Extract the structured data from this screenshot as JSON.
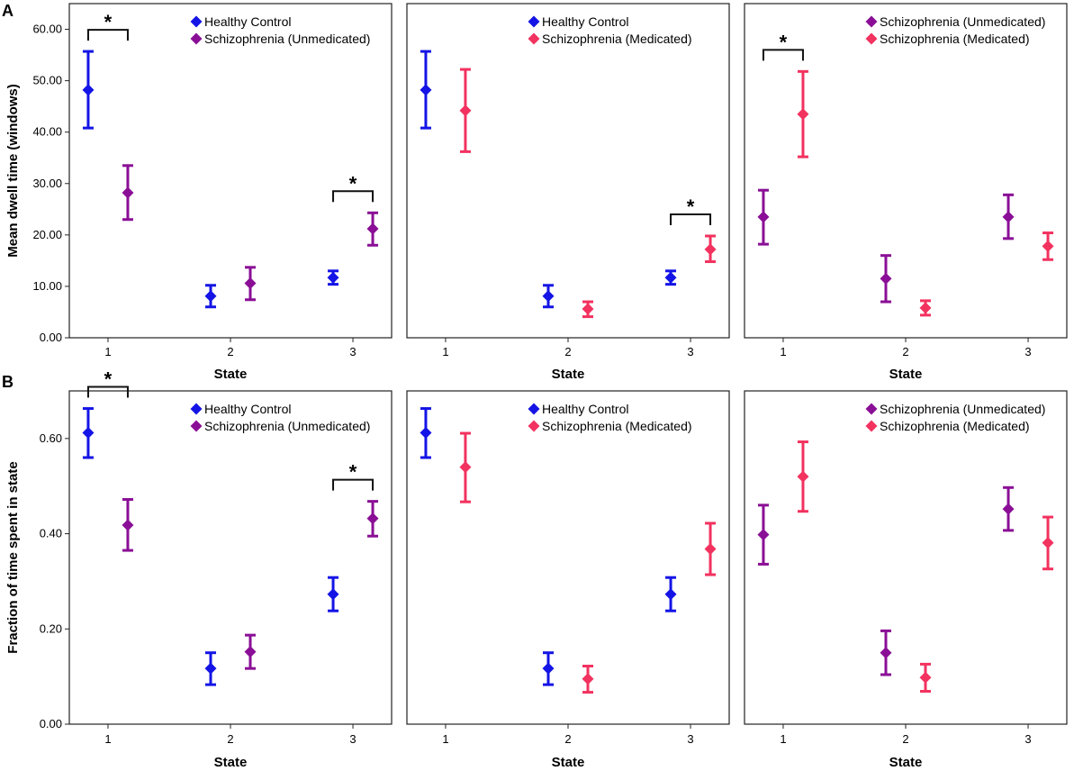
{
  "panel_labels": [
    "A",
    "B"
  ],
  "colors": {
    "Healthy Control": "#1414e6",
    "Schizophrenia (Unmedicated)": "#8a0f96",
    "Schizophrenia (Medicated)": "#f2325f"
  },
  "chart_data": [
    {
      "type": "scatter",
      "row": 0,
      "col": 0,
      "title": "",
      "xlabel": "State",
      "ylabel": "Mean dwell time (windows)",
      "categories": [
        "1",
        "2",
        "3"
      ],
      "ylim": [
        0,
        65
      ],
      "yticks": [
        "0.00",
        "10.00",
        "20.00",
        "30.00",
        "40.00",
        "50.00",
        "60.00"
      ],
      "series": [
        {
          "name": "Healthy Control",
          "mean": [
            48.2,
            8.1,
            11.7
          ],
          "lower": [
            40.8,
            6.0,
            10.4
          ],
          "upper": [
            55.7,
            10.2,
            13.0
          ]
        },
        {
          "name": "Schizophrenia (Unmedicated)",
          "mean": [
            28.2,
            10.6,
            21.2
          ],
          "lower": [
            23.0,
            7.4,
            18.0
          ],
          "upper": [
            33.5,
            13.7,
            24.3
          ]
        }
      ],
      "significance": [
        {
          "state": 0,
          "label": "*"
        },
        {
          "state": 2,
          "label": "*"
        }
      ]
    },
    {
      "type": "scatter",
      "row": 0,
      "col": 1,
      "title": "",
      "xlabel": "State",
      "ylabel": "",
      "categories": [
        "1",
        "2",
        "3"
      ],
      "ylim": [
        0,
        65
      ],
      "series": [
        {
          "name": "Healthy Control",
          "mean": [
            48.2,
            8.1,
            11.7
          ],
          "lower": [
            40.8,
            6.0,
            10.4
          ],
          "upper": [
            55.7,
            10.2,
            13.0
          ]
        },
        {
          "name": "Schizophrenia (Medicated)",
          "mean": [
            44.2,
            5.6,
            17.2
          ],
          "lower": [
            36.2,
            4.1,
            14.8
          ],
          "upper": [
            52.2,
            7.0,
            19.8
          ]
        }
      ],
      "significance": [
        {
          "state": 2,
          "label": "*"
        }
      ]
    },
    {
      "type": "scatter",
      "row": 0,
      "col": 2,
      "title": "",
      "xlabel": "State",
      "ylabel": "",
      "categories": [
        "1",
        "2",
        "3"
      ],
      "ylim": [
        0,
        65
      ],
      "series": [
        {
          "name": "Schizophrenia (Unmedicated)",
          "mean": [
            23.5,
            11.5,
            23.5
          ],
          "lower": [
            18.2,
            7.0,
            19.3
          ],
          "upper": [
            28.7,
            16.0,
            27.8
          ]
        },
        {
          "name": "Schizophrenia (Medicated)",
          "mean": [
            43.5,
            5.8,
            17.8
          ],
          "lower": [
            35.2,
            4.4,
            15.2
          ],
          "upper": [
            51.8,
            7.2,
            20.4
          ]
        }
      ],
      "significance": [
        {
          "state": 0,
          "label": "*"
        }
      ]
    },
    {
      "type": "scatter",
      "row": 1,
      "col": 0,
      "title": "",
      "xlabel": "State",
      "ylabel": "Fraction of time spent in state",
      "categories": [
        "1",
        "2",
        "3"
      ],
      "ylim": [
        0,
        0.7
      ],
      "yticks": [
        "0.00",
        "0.20",
        "0.40",
        "0.60"
      ],
      "series": [
        {
          "name": "Healthy Control",
          "mean": [
            0.612,
            0.117,
            0.273
          ],
          "lower": [
            0.56,
            0.083,
            0.238
          ],
          "upper": [
            0.663,
            0.15,
            0.308
          ]
        },
        {
          "name": "Schizophrenia (Unmedicated)",
          "mean": [
            0.418,
            0.152,
            0.432
          ],
          "lower": [
            0.365,
            0.117,
            0.395
          ],
          "upper": [
            0.472,
            0.187,
            0.468
          ]
        }
      ],
      "significance": [
        {
          "state": 0,
          "label": "*"
        },
        {
          "state": 2,
          "label": "*"
        }
      ]
    },
    {
      "type": "scatter",
      "row": 1,
      "col": 1,
      "title": "",
      "xlabel": "State",
      "ylabel": "",
      "categories": [
        "1",
        "2",
        "3"
      ],
      "ylim": [
        0,
        0.7
      ],
      "series": [
        {
          "name": "Healthy Control",
          "mean": [
            0.612,
            0.117,
            0.273
          ],
          "lower": [
            0.56,
            0.083,
            0.238
          ],
          "upper": [
            0.663,
            0.15,
            0.308
          ]
        },
        {
          "name": "Schizophrenia (Medicated)",
          "mean": [
            0.54,
            0.095,
            0.368
          ],
          "lower": [
            0.467,
            0.067,
            0.314
          ],
          "upper": [
            0.611,
            0.122,
            0.422
          ]
        }
      ],
      "significance": []
    },
    {
      "type": "scatter",
      "row": 1,
      "col": 2,
      "title": "",
      "xlabel": "State",
      "ylabel": "",
      "categories": [
        "1",
        "2",
        "3"
      ],
      "ylim": [
        0,
        0.7
      ],
      "series": [
        {
          "name": "Schizophrenia (Unmedicated)",
          "mean": [
            0.398,
            0.15,
            0.452
          ],
          "lower": [
            0.336,
            0.104,
            0.407
          ],
          "upper": [
            0.46,
            0.196,
            0.497
          ]
        },
        {
          "name": "Schizophrenia (Medicated)",
          "mean": [
            0.52,
            0.098,
            0.381
          ],
          "lower": [
            0.447,
            0.069,
            0.326
          ],
          "upper": [
            0.593,
            0.126,
            0.435
          ]
        }
      ],
      "significance": []
    }
  ]
}
